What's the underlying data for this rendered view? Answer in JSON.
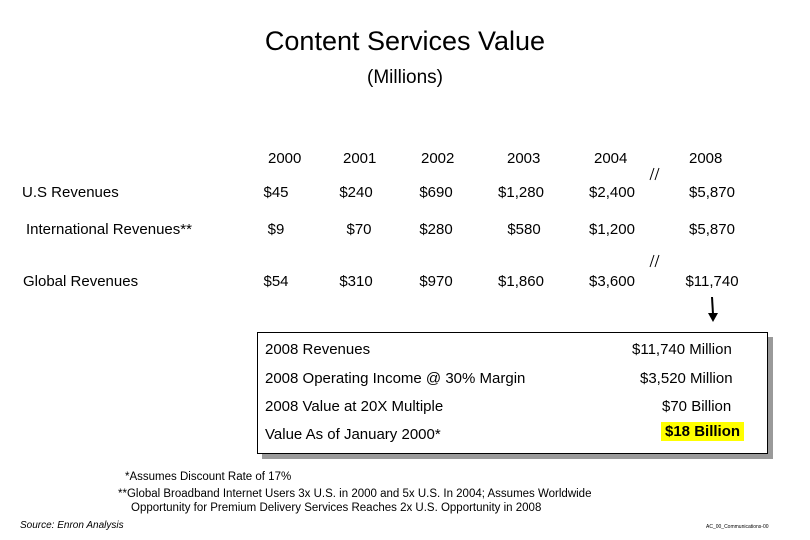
{
  "title": "Content Services Value",
  "subtitle": "(Millions)",
  "years": [
    "2000",
    "2001",
    "2002",
    "2003",
    "2004",
    "2008"
  ],
  "rows": [
    {
      "label": "U.S Revenues",
      "values": [
        "$45",
        "$240",
        "$690",
        "$1,280",
        "$2,400",
        "$5,870"
      ]
    },
    {
      "label": "International Revenues**",
      "values": [
        "$9",
        "$70",
        "$280",
        "$580",
        "$1,200",
        "$5,870"
      ]
    },
    {
      "label": "Global Revenues",
      "values": [
        "$54",
        "$310",
        "$970",
        "$1,860",
        "$3,600",
        "$11,740"
      ]
    }
  ],
  "summary": [
    {
      "label": "2008 Revenues",
      "value": "$11,740 Million"
    },
    {
      "label": "2008 Operating Income @ 30% Margin",
      "value": "$3,520 Million"
    },
    {
      "label": "2008 Value at 20X Multiple",
      "value": "$70 Billion"
    },
    {
      "label": "Value As of January 2000*",
      "value": "$18 Billion"
    }
  ],
  "footnotes": [
    "*Assumes Discount Rate of 17%",
    "**Global Broadband Internet Users 3x U.S. in 2000 and 5x U.S. In 2004; Assumes Worldwide",
    "Opportunity for Premium Delivery Services Reaches 2x U.S. Opportunity in 2008"
  ],
  "source": "Source: Enron Analysis",
  "slide_id": "AC_00_Communications-00",
  "colors": {
    "highlight": "#ffff00",
    "shadow": "#9a9a9a"
  }
}
